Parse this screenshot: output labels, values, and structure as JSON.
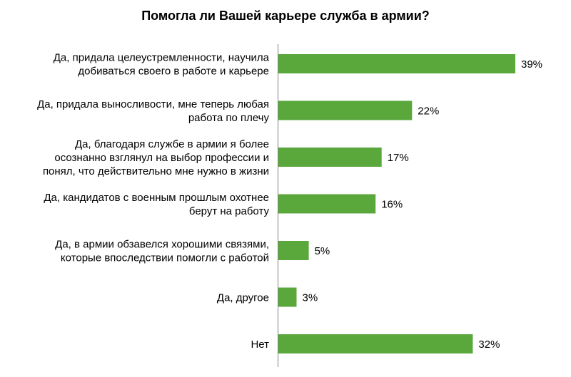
{
  "chart_data": {
    "type": "bar",
    "orientation": "horizontal",
    "title": "Помогла ли Вашей карьере служба в армии?",
    "bar_color": "#5aa73c",
    "value_suffix": "%",
    "categories": [
      [
        "Да, придала целеустремленности, научила",
        "добиваться своего в работе и карьере"
      ],
      [
        "Да, придала выносливости, мне теперь любая",
        "работа по плечу"
      ],
      [
        "Да, благодаря службе в армии я более",
        "осознанно взглянул на выбор профессии и",
        "понял, что действительно мне нужно в жизни"
      ],
      [
        "Да, кандидатов с военным прошлым охотнее",
        "берут на работу"
      ],
      [
        "Да, в армии обзавелся хорошими связями,",
        "которые впоследствии помогли с работой"
      ],
      [
        "Да, другое"
      ],
      [
        "Нет"
      ]
    ],
    "values": [
      39,
      22,
      17,
      16,
      5,
      3,
      32
    ],
    "labels": [
      "39%",
      "22%",
      "17%",
      "16%",
      "5%",
      "3%",
      "32%"
    ],
    "xlim": [
      0,
      45
    ],
    "grid": false,
    "legend": "none"
  }
}
